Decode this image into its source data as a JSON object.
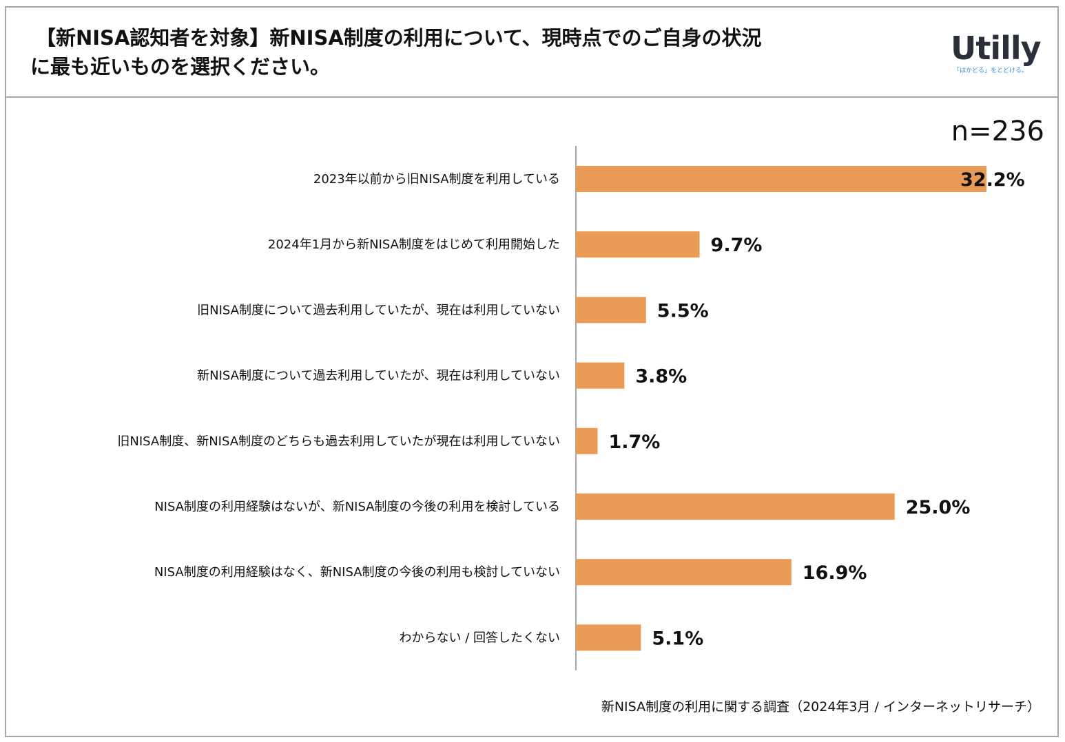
{
  "title": {
    "line1": "【新NISA認知者を対象】新NISA制度の利用について、現時点でのご自身の状況",
    "line2": "に最も近いものを選択ください。"
  },
  "logo": {
    "name": "Utilly",
    "tagline": "「はかどる」をとどける。"
  },
  "sample_size": "n=236",
  "footer": "新NISA制度の利用に関する調査（2024年3月 / インターネットリサーチ）",
  "colors": {
    "bar": "#E99B56",
    "axis": "#888888",
    "frame": "#A6A6A6"
  },
  "chart_data": {
    "type": "bar",
    "orientation": "horizontal",
    "categories": [
      "2023年以前から旧NISA制度を利用している",
      "2024年1月から新NISA制度をはじめて利用開始した",
      "旧NISA制度について過去利用していたが、現在は利用していない",
      "新NISA制度について過去利用していたが、現在は利用していない",
      "旧NISA制度、新NISA制度のどちらも過去利用していたが現在は利用していない",
      "NISA制度の利用経験はないが、新NISA制度の今後の利用を検討している",
      "NISA制度の利用経験はなく、新NISA制度の今後の利用も検討していない",
      "わからない / 回答したくない"
    ],
    "values": [
      32.2,
      9.7,
      5.5,
      3.8,
      1.7,
      25.0,
      16.9,
      5.1
    ],
    "value_labels": [
      "32.2%",
      "9.7%",
      "5.5%",
      "3.8%",
      "1.7%",
      "25.0%",
      "16.9%",
      "5.1%"
    ],
    "unit": "%",
    "xlim": [
      0,
      32.2
    ],
    "grid": false,
    "legend": "none"
  }
}
